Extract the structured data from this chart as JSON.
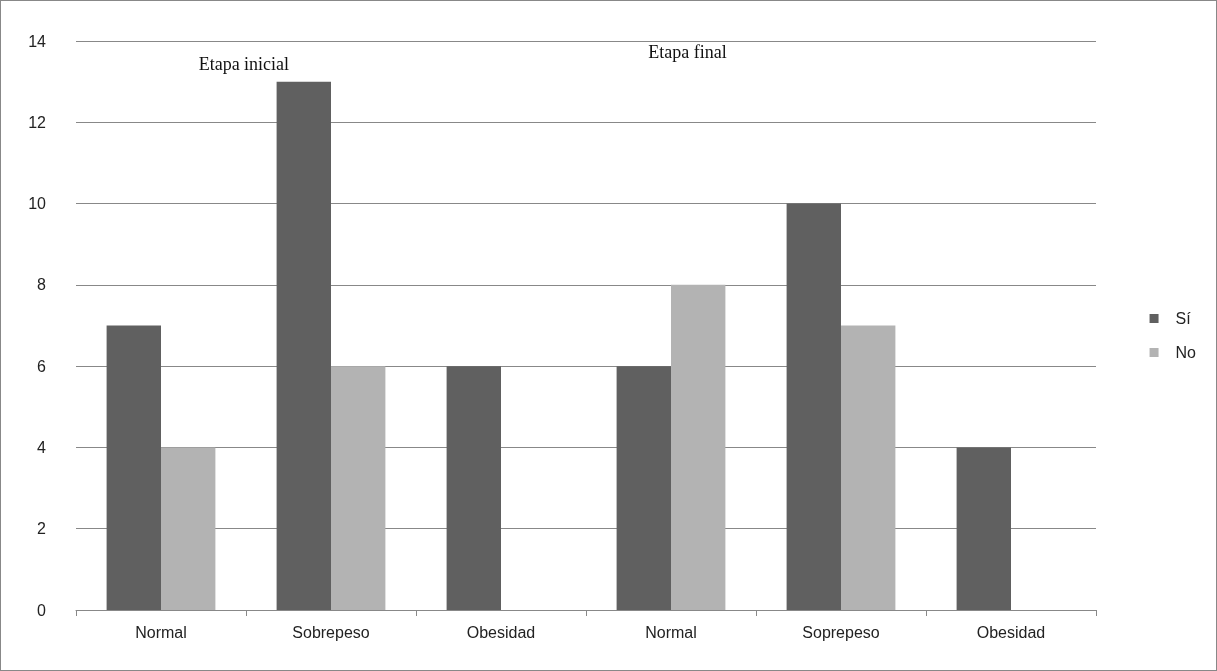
{
  "chart_data": {
    "type": "bar",
    "categories": [
      "Normal",
      "Sobrepeso",
      "Obesidad",
      "Normal",
      "Soprepeso",
      "Obesidad"
    ],
    "series": [
      {
        "name": "Sí",
        "color": "#606060",
        "values": [
          7,
          13,
          6,
          6,
          10,
          4
        ]
      },
      {
        "name": "No",
        "color": "#b3b3b3",
        "values": [
          4,
          6,
          0,
          8,
          7,
          0
        ]
      }
    ],
    "ylim": [
      0,
      14
    ],
    "yticks": [
      0,
      2,
      4,
      6,
      8,
      10,
      12,
      14
    ],
    "grid": "y",
    "legend": "right",
    "annotations": [
      "Etapa inicial",
      "Etapa final"
    ]
  }
}
